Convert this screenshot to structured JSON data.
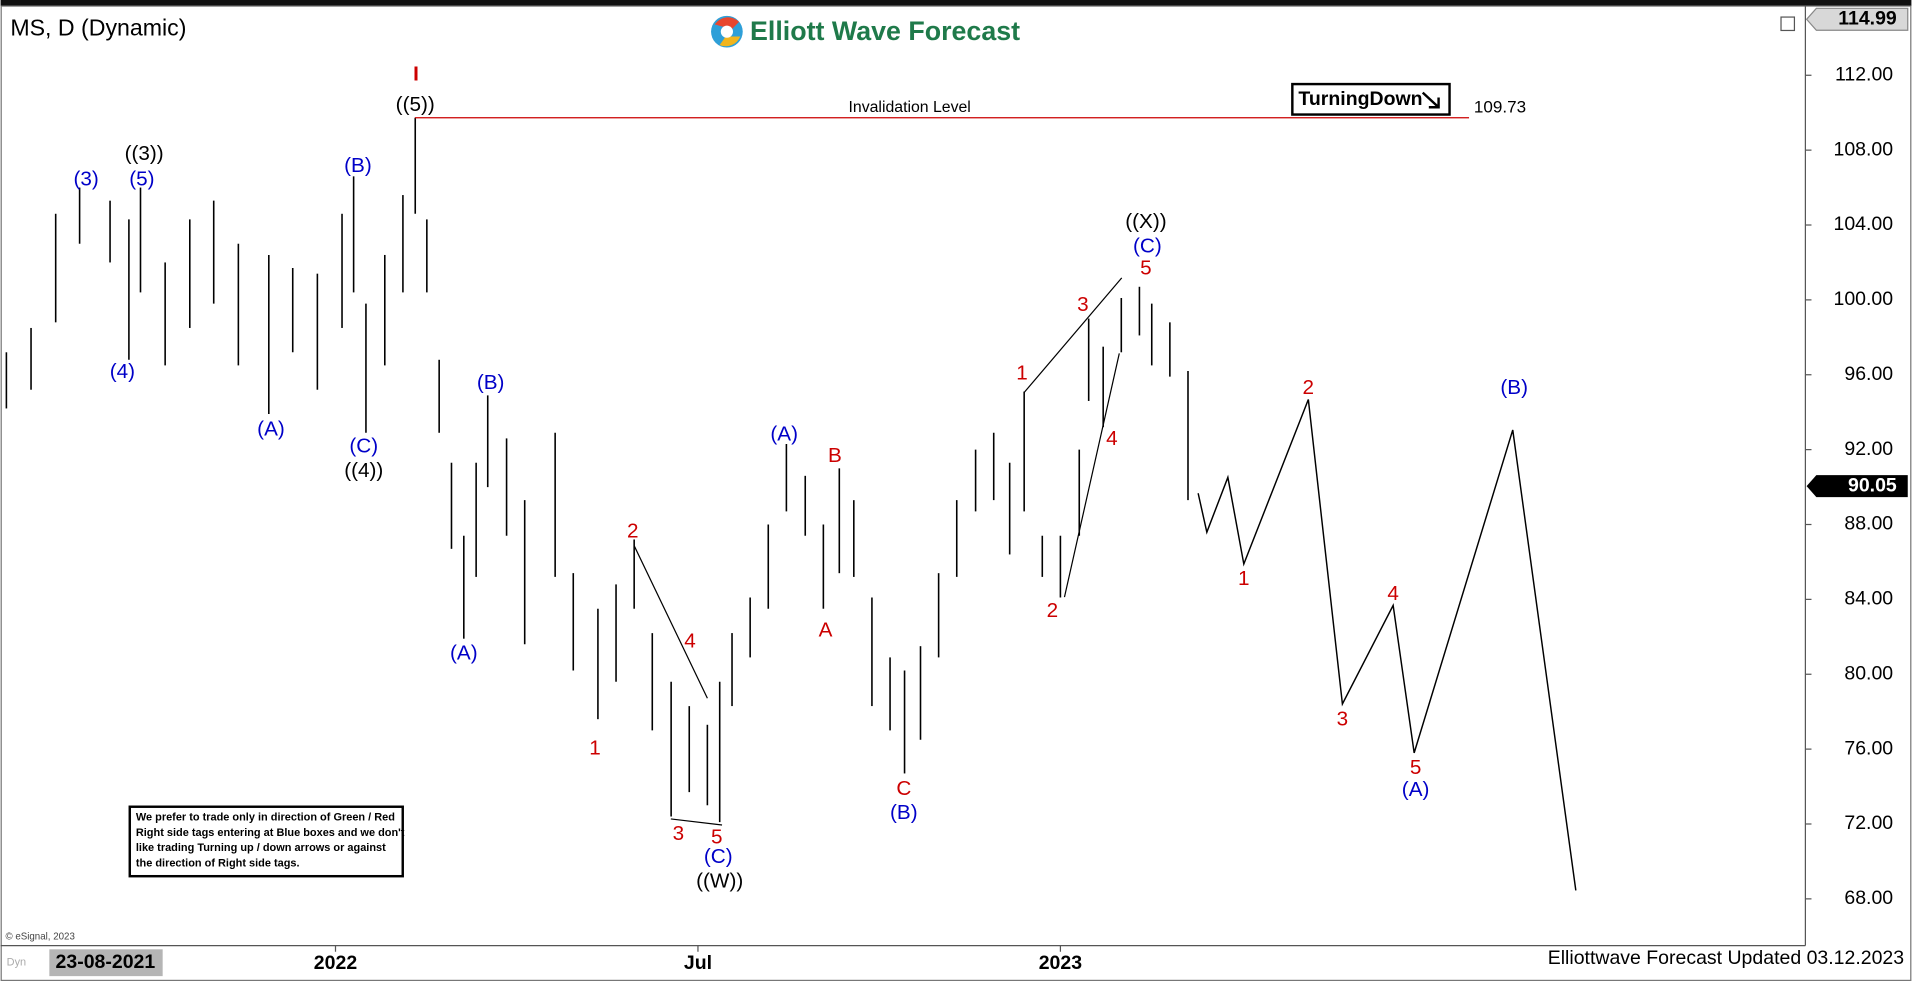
{
  "chart_data": {
    "type": "ohlc",
    "title": "MS, D (Dynamic)",
    "brand": "Elliott Wave Forecast",
    "color": "#000000",
    "x": [
      2021.546,
      2021.58,
      2021.614,
      2021.647,
      2021.689,
      2021.715,
      2021.731,
      2021.765,
      2021.799,
      2021.832,
      2021.866,
      2021.908,
      2021.941,
      2021.975,
      2022.009,
      2022.025,
      2022.042,
      2022.068,
      2022.093,
      2022.11,
      2022.126,
      2022.143,
      2022.16,
      2022.177,
      2022.194,
      2022.21,
      2022.236,
      2022.261,
      2022.303,
      2022.328,
      2022.362,
      2022.387,
      2022.412,
      2022.437,
      2022.463,
      2022.488,
      2022.513,
      2022.53,
      2022.547,
      2022.572,
      2022.597,
      2022.622,
      2022.648,
      2022.673,
      2022.695,
      2022.715,
      2022.74,
      2022.765,
      2022.785,
      2022.807,
      2022.832,
      2022.857,
      2022.883,
      2022.908,
      2022.93,
      2022.95,
      2022.975,
      2023.0,
      2023.026,
      2023.039,
      2023.059,
      2023.084,
      2023.109,
      2023.126,
      2023.151,
      2023.176
    ],
    "high": [
      97.2,
      98.5,
      104.6,
      106.0,
      105.3,
      104.3,
      106.0,
      102.0,
      104.3,
      105.3,
      103.0,
      102.4,
      101.7,
      101.4,
      104.6,
      106.6,
      99.8,
      102.4,
      105.6,
      109.73,
      104.3,
      96.8,
      91.3,
      87.4,
      91.3,
      94.9,
      92.6,
      89.3,
      92.9,
      85.4,
      83.5,
      84.8,
      87.2,
      82.2,
      79.6,
      78.3,
      77.3,
      79.6,
      82.2,
      84.1,
      88.0,
      92.3,
      90.6,
      88.0,
      91.0,
      89.3,
      84.1,
      80.9,
      80.2,
      81.5,
      85.4,
      89.3,
      92.0,
      92.9,
      91.3,
      95.1,
      87.4,
      87.4,
      92.0,
      99.0,
      97.5,
      100.1,
      100.7,
      99.8,
      98.8,
      96.2
    ],
    "low": [
      94.2,
      95.2,
      98.8,
      103.0,
      102.0,
      96.8,
      100.4,
      96.5,
      98.5,
      99.8,
      96.5,
      93.9,
      97.2,
      95.2,
      98.5,
      100.4,
      92.9,
      96.5,
      100.4,
      104.6,
      100.4,
      92.9,
      86.7,
      81.9,
      85.2,
      90.0,
      87.4,
      81.6,
      85.2,
      80.2,
      77.6,
      79.6,
      83.5,
      77.0,
      72.4,
      73.7,
      73.0,
      72.1,
      78.3,
      80.9,
      83.5,
      88.7,
      87.4,
      83.5,
      85.4,
      85.2,
      78.3,
      77.0,
      74.7,
      76.5,
      80.9,
      85.2,
      88.7,
      89.3,
      86.4,
      88.7,
      85.2,
      84.1,
      87.4,
      94.6,
      93.2,
      97.2,
      98.1,
      96.5,
      95.9,
      89.3
    ],
    "xlim": [
      2021.538,
      2024.026
    ],
    "ylim": [
      65.5,
      115.5
    ],
    "xticks": [
      2022,
      {
        "value": 2022.5,
        "label": "Jul"
      },
      2023
    ],
    "yticks": [
      {
        "value": 68,
        "label": "68.00"
      },
      {
        "value": 72,
        "label": "72.00"
      },
      {
        "value": 76,
        "label": "76.00"
      },
      {
        "value": 80,
        "label": "80.00"
      },
      {
        "value": 84,
        "label": "84.00"
      },
      {
        "value": 88,
        "label": "88.00"
      },
      {
        "value": 92,
        "label": "92.00"
      },
      {
        "value": 96,
        "label": "96.00"
      },
      {
        "value": 100,
        "label": "100.00"
      },
      {
        "value": 104,
        "label": "104.00"
      },
      {
        "value": 108,
        "label": "108.00"
      },
      {
        "value": 112,
        "label": "112.00"
      }
    ],
    "top_price": 114.99,
    "last_price": 90.05,
    "invalidation": {
      "label": "Invalidation Level",
      "value": 109.73,
      "color": "#cc0000"
    },
    "projection": {
      "color": "#000000",
      "x": [
        2023.19,
        2023.202,
        2023.231,
        2023.253,
        2023.342,
        2023.389,
        2023.459,
        2023.488,
        2023.624,
        2023.711
      ],
      "values": [
        89.67,
        87.59,
        90.52,
        85.89,
        94.68,
        78.41,
        83.68,
        75.8,
        93.05,
        68.45
      ]
    },
    "wave_labels": [
      {
        "text": "(3)",
        "x": 2021.656,
        "y": 106.4,
        "color": "#0000c8"
      },
      {
        "text": "((3))",
        "x": 2021.736,
        "y": 107.77,
        "color": "#000000"
      },
      {
        "text": "(5)",
        "x": 2021.733,
        "y": 106.4,
        "color": "#0000c8"
      },
      {
        "text": "(4)",
        "x": 2021.706,
        "y": 96.11,
        "color": "#0000c8"
      },
      {
        "text": "(A)",
        "x": 2021.911,
        "y": 93.05,
        "color": "#0000c8"
      },
      {
        "text": "(B)",
        "x": 2022.031,
        "y": 107.12,
        "color": "#0000c8"
      },
      {
        "text": "(C)",
        "x": 2022.039,
        "y": 92.14,
        "color": "#0000c8"
      },
      {
        "text": "((4))",
        "x": 2022.039,
        "y": 90.84,
        "color": "#000000"
      },
      {
        "text": "I",
        "x": 2022.111,
        "y": 112.0,
        "color": "#cc0000"
      },
      {
        "text": "((5))",
        "x": 2022.11,
        "y": 110.37,
        "color": "#000000"
      },
      {
        "text": "(A)",
        "x": 2022.177,
        "y": 81.08,
        "color": "#0000c8"
      },
      {
        "text": "(B)",
        "x": 2022.214,
        "y": 95.53,
        "color": "#0000c8"
      },
      {
        "text": "2",
        "x": 2022.41,
        "y": 87.59,
        "color": "#cc0000"
      },
      {
        "text": "1",
        "x": 2022.358,
        "y": 76.0,
        "color": "#cc0000"
      },
      {
        "text": "4",
        "x": 2022.489,
        "y": 81.73,
        "color": "#cc0000"
      },
      {
        "text": "3",
        "x": 2022.473,
        "y": 71.44,
        "color": "#cc0000"
      },
      {
        "text": "5",
        "x": 2022.526,
        "y": 71.24,
        "color": "#cc0000"
      },
      {
        "text": "(C)",
        "x": 2022.528,
        "y": 70.2,
        "color": "#0000c8"
      },
      {
        "text": "((W))",
        "x": 2022.53,
        "y": 68.9,
        "color": "#000000"
      },
      {
        "text": "(A)",
        "x": 2022.619,
        "y": 92.79,
        "color": "#0000c8"
      },
      {
        "text": "B",
        "x": 2022.689,
        "y": 91.62,
        "color": "#cc0000"
      },
      {
        "text": "A",
        "x": 2022.676,
        "y": 82.31,
        "color": "#cc0000"
      },
      {
        "text": "C",
        "x": 2022.784,
        "y": 73.85,
        "color": "#cc0000"
      },
      {
        "text": "(B)",
        "x": 2022.784,
        "y": 72.55,
        "color": "#0000c8"
      },
      {
        "text": "1",
        "x": 2022.947,
        "y": 96.05,
        "color": "#cc0000"
      },
      {
        "text": "3",
        "x": 2023.031,
        "y": 99.7,
        "color": "#cc0000"
      },
      {
        "text": "2",
        "x": 2022.989,
        "y": 83.35,
        "color": "#cc0000"
      },
      {
        "text": "4",
        "x": 2023.071,
        "y": 92.53,
        "color": "#cc0000"
      },
      {
        "text": "5",
        "x": 2023.118,
        "y": 101.65,
        "color": "#cc0000"
      },
      {
        "text": "(C)",
        "x": 2023.12,
        "y": 102.82,
        "color": "#0000c8"
      },
      {
        "text": "((X))",
        "x": 2023.118,
        "y": 104.12,
        "color": "#000000"
      },
      {
        "text": "1",
        "x": 2023.253,
        "y": 85.05,
        "color": "#cc0000"
      },
      {
        "text": "2",
        "x": 2023.342,
        "y": 95.27,
        "color": "#cc0000"
      },
      {
        "text": "3",
        "x": 2023.389,
        "y": 77.56,
        "color": "#cc0000"
      },
      {
        "text": "4",
        "x": 2023.459,
        "y": 84.27,
        "color": "#cc0000"
      },
      {
        "text": "5",
        "x": 2023.49,
        "y": 74.96,
        "color": "#cc0000"
      },
      {
        "text": "(A)",
        "x": 2023.49,
        "y": 73.79,
        "color": "#0000c8"
      },
      {
        "text": "(B)",
        "x": 2023.626,
        "y": 95.27,
        "color": "#0000c8"
      }
    ],
    "tag": "TurningDown",
    "note": [
      "We prefer to trade only in direction of Green / Red",
      "Right side tags entering at Blue boxes and we don't",
      "like trading Turning up / down arrows or against",
      "the direction of Right side tags."
    ],
    "credit": "© eSignal, 2023",
    "cursor_date": "23-08-2021",
    "updated": "Elliottwave Forecast Updated 03.12.2023"
  }
}
